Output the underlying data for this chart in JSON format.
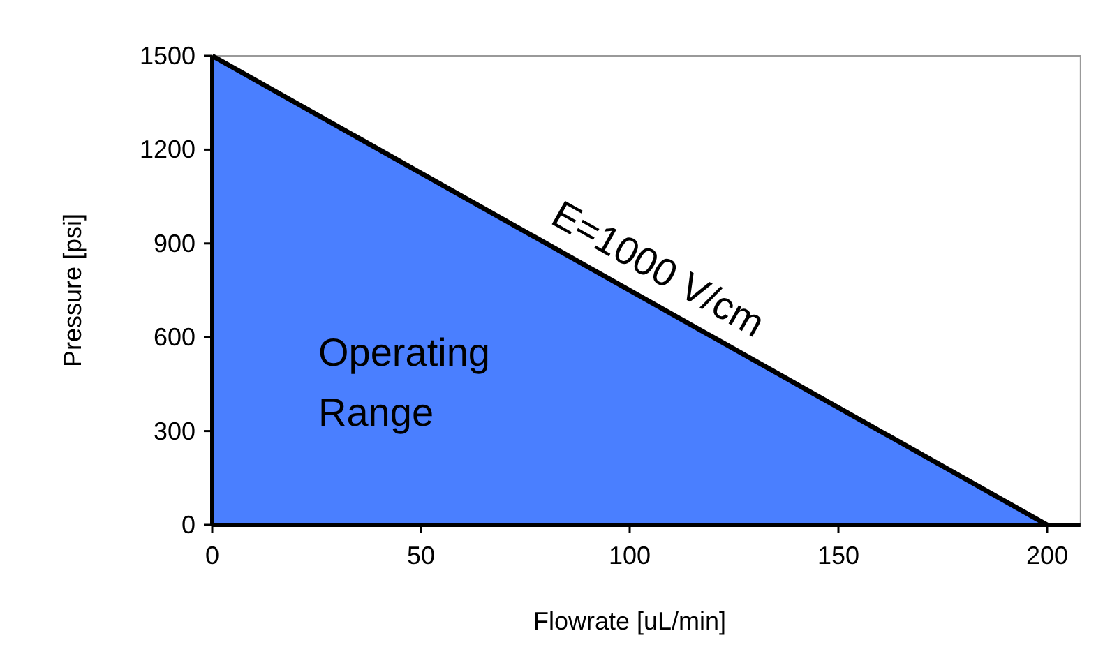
{
  "chart_data": {
    "type": "area",
    "xlabel": "Flowrate [uL/min]",
    "ylabel": "Pressure [psi]",
    "x": [
      0,
      200
    ],
    "series": [
      {
        "color": "#4a7fff",
        "values": [
          1500,
          0
        ]
      }
    ],
    "xlim": [
      0,
      208
    ],
    "xticks": [
      0,
      50,
      100,
      150,
      200
    ],
    "ylim": [
      0,
      1500
    ],
    "yticks": [
      0,
      300,
      600,
      900,
      1200,
      1500
    ],
    "annotations": [
      {
        "text": "E=1000 V/cm",
        "x": 103,
        "y": 727.5
      },
      "Operating Range"
    ]
  }
}
